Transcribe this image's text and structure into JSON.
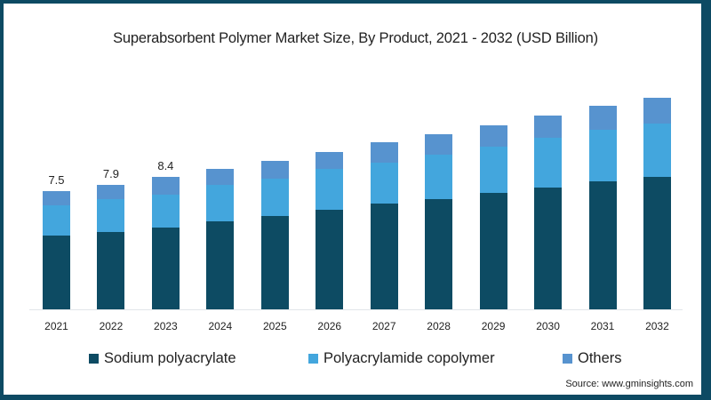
{
  "title": "Superabsorbent Polymer Market Size, By Product, 2021 - 2032 (USD Billion)",
  "source": "Source: www.gminsights.com",
  "colors": {
    "frame": "#0d4a63",
    "sodium_polyacrylate": "#0d4b63",
    "polyacrylamide_copolymer": "#43a6dd",
    "others": "#5793cf"
  },
  "legend": [
    {
      "label": "Sodium polyacrylate",
      "color": "#0d4b63"
    },
    {
      "label": "Polyacrylamide copolymer",
      "color": "#43a6dd"
    },
    {
      "label": "Others",
      "color": "#5793cf"
    }
  ],
  "chart_data": {
    "type": "bar",
    "stacked": true,
    "title": "Superabsorbent Polymer Market Size, By Product, 2021 - 2032 (USD Billion)",
    "xlabel": "",
    "ylabel": "USD Billion",
    "categories": [
      "2021",
      "2022",
      "2023",
      "2024",
      "2025",
      "2026",
      "2027",
      "2028",
      "2029",
      "2030",
      "2031",
      "2032"
    ],
    "series": [
      {
        "name": "Sodium polyacrylate",
        "values": [
          4.7,
          4.9,
          5.2,
          5.6,
          5.9,
          6.3,
          6.7,
          7.0,
          7.4,
          7.7,
          8.1,
          8.4
        ]
      },
      {
        "name": "Polyacrylamide copolymer",
        "values": [
          1.9,
          2.1,
          2.1,
          2.3,
          2.4,
          2.6,
          2.6,
          2.8,
          2.9,
          3.2,
          3.3,
          3.4
        ]
      },
      {
        "name": "Others",
        "values": [
          0.9,
          0.9,
          1.1,
          1.0,
          1.1,
          1.1,
          1.3,
          1.3,
          1.4,
          1.4,
          1.5,
          1.6
        ]
      }
    ],
    "totals": [
      7.5,
      7.9,
      8.4,
      8.9,
      9.4,
      10.0,
      10.6,
      11.1,
      11.7,
      12.3,
      12.9,
      13.4
    ],
    "data_labels": [
      {
        "category": "2021",
        "text": "7.5"
      },
      {
        "category": "2022",
        "text": "7.9"
      },
      {
        "category": "2023",
        "text": "8.4"
      }
    ],
    "ylim": [
      0,
      15
    ],
    "grid": false,
    "y_axis_visible": false,
    "legend_position": "bottom"
  }
}
